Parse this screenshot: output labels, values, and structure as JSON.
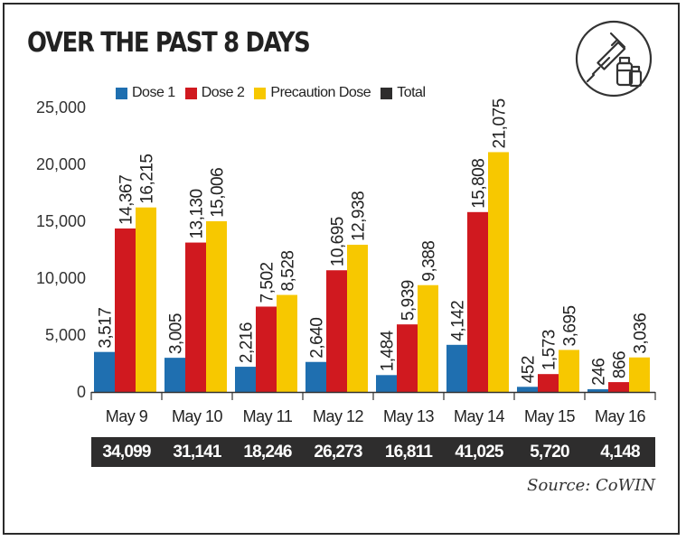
{
  "title": "OVER THE PAST 8 DAYS",
  "icon": "vaccine-syringe-icon",
  "source": "Source: CoWIN",
  "totals_label": "Total",
  "colors": {
    "dose1": "#1f6fb0",
    "dose2": "#d0191f",
    "precaution": "#f7c800",
    "total": "#2e2d2d"
  },
  "chart_data": {
    "type": "bar",
    "categories": [
      "May 9",
      "May 10",
      "May 11",
      "May 12",
      "May 13",
      "May 14",
      "May 15",
      "May 16"
    ],
    "series": [
      {
        "name": "Dose 1",
        "values": [
          3517,
          3005,
          2216,
          2640,
          1484,
          4142,
          452,
          246
        ]
      },
      {
        "name": "Dose 2",
        "values": [
          14367,
          13130,
          7502,
          10695,
          5939,
          15808,
          1573,
          866
        ]
      },
      {
        "name": "Precaution Dose",
        "values": [
          16215,
          15006,
          8528,
          12938,
          9388,
          21075,
          3695,
          3036
        ]
      }
    ],
    "totals": [
      34099,
      31141,
      18246,
      26273,
      16811,
      41025,
      5720,
      4148
    ],
    "yticks": [
      "0",
      "5,000",
      "10,000",
      "15,000",
      "20,000",
      "25,000"
    ],
    "ylim": [
      0,
      25000
    ],
    "grid": false,
    "legend": "top"
  }
}
